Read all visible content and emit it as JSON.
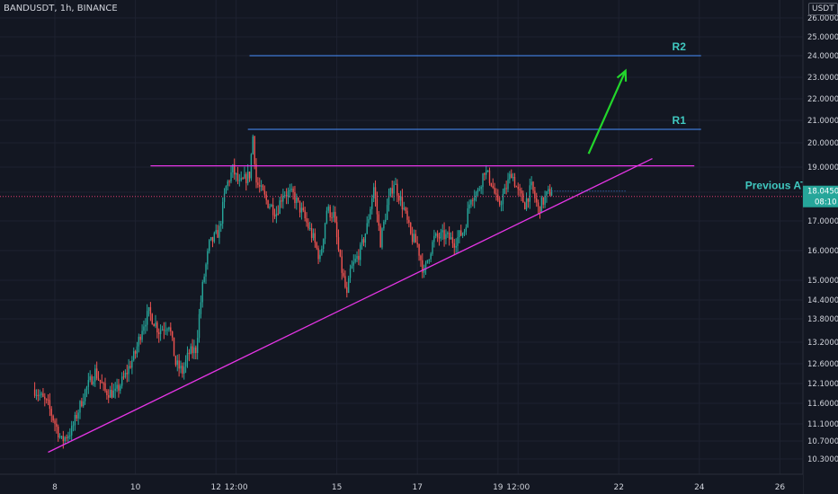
{
  "header": {
    "symbol": "BANDUSDT, 1h, BINANCE",
    "currency": "USDT"
  },
  "colors": {
    "bg": "#131722",
    "grid": "#1e2230",
    "up": "#26a69a",
    "down": "#ef5350",
    "fuchsia": "#e535e5",
    "blue": "#3f7ad6",
    "green": "#22d62b",
    "cyan": "#40c8c0",
    "priceTag": "#26a69a",
    "lastLine": "#e53a6e",
    "text": "#d1d4dc"
  },
  "chart_data": {
    "type": "candlestick",
    "y_ticks": [
      "26.0000",
      "25.0000",
      "24.0000",
      "23.0000",
      "22.0000",
      "21.0000",
      "20.0000",
      "19.0000",
      "18.0000",
      "17.0000",
      "16.0000",
      "15.0000",
      "14.4000",
      "13.8000",
      "13.2000",
      "12.6000",
      "12.1000",
      "11.6000",
      "11.1000",
      "10.7000",
      "10.3000"
    ],
    "x_ticks": [
      {
        "label": "8",
        "i": 0
      },
      {
        "label": "10",
        "i": 48
      },
      {
        "label": "12",
        "i": 96
      },
      {
        "label": "12:00",
        "i": 108
      },
      {
        "label": "15",
        "i": 168
      },
      {
        "label": "17",
        "i": 216
      },
      {
        "label": "19",
        "i": 264
      },
      {
        "label": "12:00",
        "i": 276
      },
      {
        "label": "22",
        "i": 336
      },
      {
        "label": "24",
        "i": 384
      },
      {
        "label": "26",
        "i": 432
      }
    ],
    "time_axis": {
      "first_i": -12,
      "last_i": 276
    },
    "anchors": [
      [
        -12,
        11.95
      ],
      [
        -4,
        11.55
      ],
      [
        4,
        10.7
      ],
      [
        10,
        10.95
      ],
      [
        18,
        11.9
      ],
      [
        24,
        12.4
      ],
      [
        30,
        11.9
      ],
      [
        36,
        11.85
      ],
      [
        42,
        12.3
      ],
      [
        48,
        12.9
      ],
      [
        52,
        13.6
      ],
      [
        56,
        14.0
      ],
      [
        62,
        13.5
      ],
      [
        68,
        13.7
      ],
      [
        72,
        12.6
      ],
      [
        76,
        12.4
      ],
      [
        80,
        12.9
      ],
      [
        84,
        13.0
      ],
      [
        88,
        14.8
      ],
      [
        92,
        16.2
      ],
      [
        96,
        16.5
      ],
      [
        98,
        16.7
      ],
      [
        102,
        18.2
      ],
      [
        106,
        18.9
      ],
      [
        110,
        18.3
      ],
      [
        116,
        18.7
      ],
      [
        118,
        20.3
      ],
      [
        120,
        18.4
      ],
      [
        126,
        17.7
      ],
      [
        132,
        17.3
      ],
      [
        136,
        18.0
      ],
      [
        142,
        17.9
      ],
      [
        148,
        17.2
      ],
      [
        154,
        16.4
      ],
      [
        158,
        15.7
      ],
      [
        162,
        17.4
      ],
      [
        166,
        17.2
      ],
      [
        170,
        15.6
      ],
      [
        174,
        14.5
      ],
      [
        176,
        15.3
      ],
      [
        182,
        16.0
      ],
      [
        186,
        16.8
      ],
      [
        190,
        18.2
      ],
      [
        194,
        16.3
      ],
      [
        198,
        17.5
      ],
      [
        202,
        18.4
      ],
      [
        208,
        17.4
      ],
      [
        212,
        16.5
      ],
      [
        216,
        16.2
      ],
      [
        220,
        15.2
      ],
      [
        222,
        15.7
      ],
      [
        226,
        16.4
      ],
      [
        232,
        16.5
      ],
      [
        238,
        16.3
      ],
      [
        244,
        16.7
      ],
      [
        248,
        17.9
      ],
      [
        252,
        18.0
      ],
      [
        256,
        18.9
      ],
      [
        260,
        18.4
      ],
      [
        264,
        17.5
      ],
      [
        268,
        18.0
      ],
      [
        272,
        18.8
      ],
      [
        276,
        18.0
      ],
      [
        280,
        17.6
      ],
      [
        284,
        18.2
      ],
      [
        288,
        17.4
      ],
      [
        292,
        17.8
      ],
      [
        296,
        18.1
      ]
    ],
    "last_price": "18.0450",
    "countdown": "08:10",
    "annotations": {
      "r2": {
        "label": "R2",
        "price": 24.0
      },
      "r1": {
        "label": "R1",
        "price": 20.6
      },
      "ath": {
        "label": "Previous ATH",
        "price": 19.05
      },
      "trendline": {
        "from_i": -4,
        "from_price": 10.45,
        "to_i": 356,
        "to_price": 19.35
      },
      "arrow": {
        "from_i": 318,
        "from_price": 19.55,
        "to_i": 340,
        "to_price": 23.3
      }
    }
  }
}
